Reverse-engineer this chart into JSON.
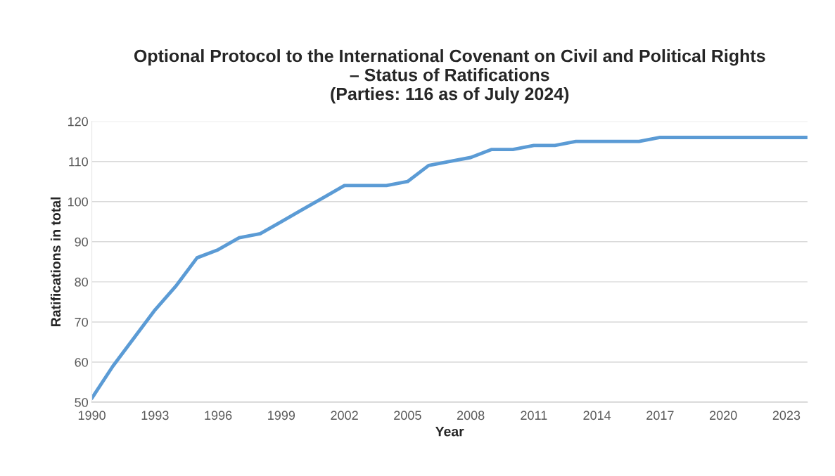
{
  "chart_data": {
    "type": "line",
    "title": "Optional Protocol to the International Covenant on Civil and Political Rights\n– Status of Ratifications\n(Parties: 116 as of July 2024)",
    "xlabel": "Year",
    "ylabel": "Ratifications in total",
    "x": [
      1990,
      1991,
      1992,
      1993,
      1994,
      1995,
      1996,
      1997,
      1998,
      1999,
      2000,
      2001,
      2002,
      2003,
      2004,
      2005,
      2006,
      2007,
      2008,
      2009,
      2010,
      2011,
      2012,
      2013,
      2014,
      2015,
      2016,
      2017,
      2018,
      2019,
      2020,
      2021,
      2022,
      2023,
      2024
    ],
    "series": [
      {
        "color": "#5b9bd5",
        "values": [
          51,
          59,
          66,
          73,
          79,
          86,
          88,
          91,
          92,
          95,
          98,
          101,
          104,
          104,
          104,
          105,
          109,
          110,
          111,
          113,
          113,
          114,
          114,
          115,
          115,
          115,
          115,
          116,
          116,
          116,
          116,
          116,
          116,
          116,
          116
        ]
      }
    ],
    "xlim": [
      1990,
      2024
    ],
    "xticks": [
      1990,
      1993,
      1996,
      1999,
      2002,
      2005,
      2008,
      2011,
      2014,
      2017,
      2020,
      2023
    ],
    "ylim": [
      50,
      120
    ],
    "yticks": [
      50,
      60,
      70,
      80,
      90,
      100,
      110,
      120
    ],
    "grid": "y",
    "marker": "none",
    "line_style": "solid"
  }
}
